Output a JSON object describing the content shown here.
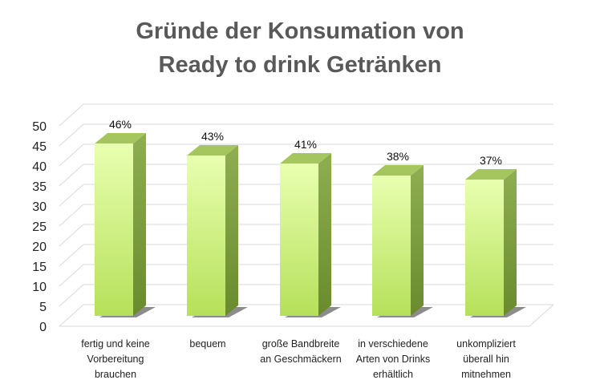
{
  "chart_data": {
    "type": "bar",
    "title_lines": [
      "Gründe der Konsumation von",
      "Ready to drink Getränken"
    ],
    "categories": [
      "fertig und keine\nVorbereitung\nbrauchen",
      "bequem",
      "große Bandbreite\nan Geschmäckern",
      "in verschiedene\nArten von Drinks\nerhältlich",
      "unkompliziert\nüberall hin\nmitnehmen"
    ],
    "values": [
      46,
      43,
      41,
      38,
      37
    ],
    "data_labels": [
      "46%",
      "43%",
      "41%",
      "38%",
      "37%"
    ],
    "y_ticks": [
      "0",
      "5",
      "10",
      "15",
      "20",
      "25",
      "30",
      "35",
      "40",
      "45",
      "50"
    ],
    "ylim": [
      0,
      50
    ],
    "xlabel": "",
    "ylabel": "",
    "grid": true,
    "colors": {
      "bar_front_light": "#e8ffb0",
      "bar_front_dark": "#b6e05a",
      "bar_side": "#7e9a44",
      "bar_top": "#a5c65e",
      "grid": "#d9d9d9",
      "title": "#595959"
    }
  }
}
